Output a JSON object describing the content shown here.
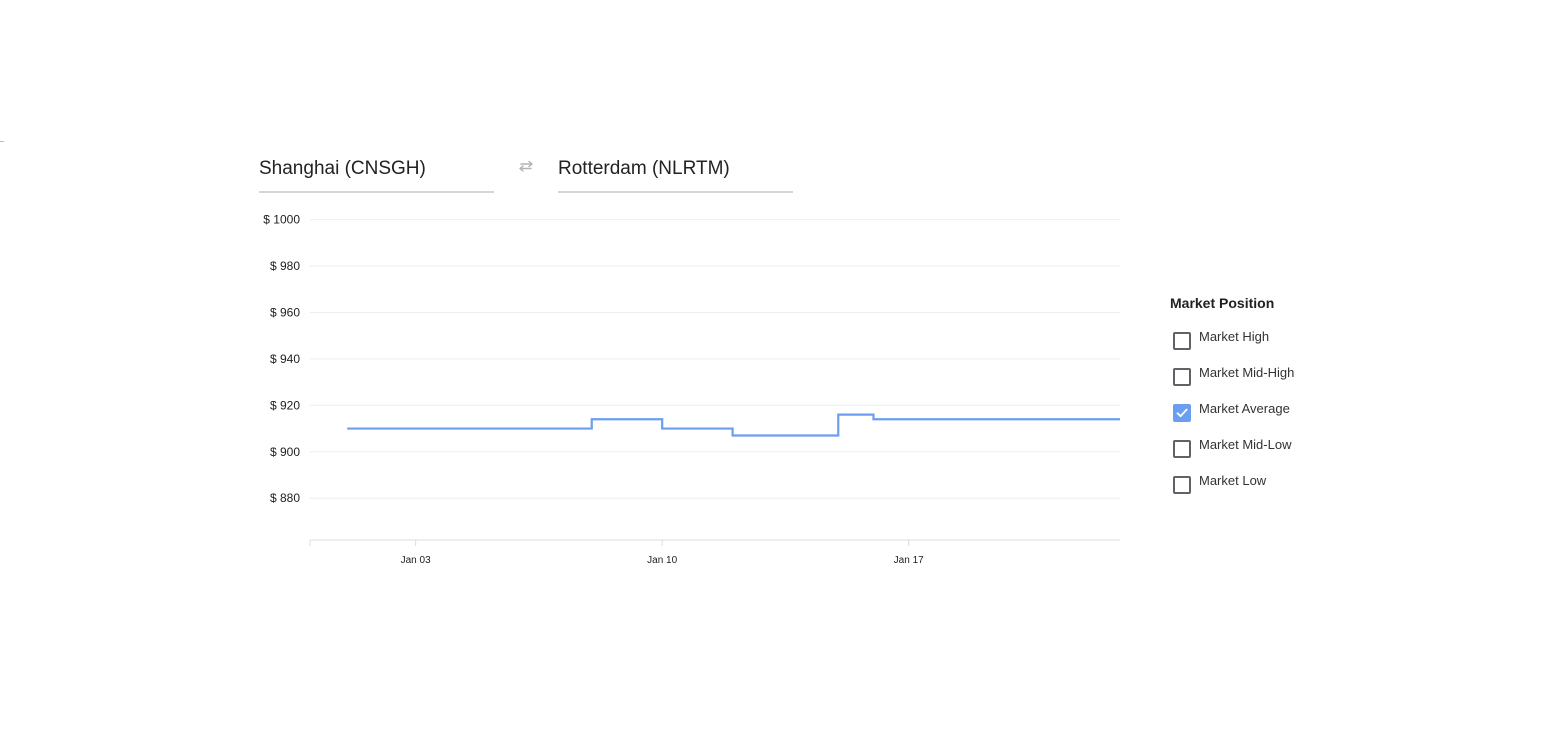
{
  "route": {
    "origin": "Shanghai (CNSGH)",
    "destination": "Rotterdam (NLRTM)",
    "swap_icon": "swap-arrows-icon"
  },
  "legend": {
    "title": "Market Position",
    "items": [
      {
        "label": "Market High",
        "checked": false
      },
      {
        "label": "Market Mid-High",
        "checked": false
      },
      {
        "label": "Market Average",
        "checked": true
      },
      {
        "label": "Market Mid-Low",
        "checked": false
      },
      {
        "label": "Market Low",
        "checked": false
      }
    ]
  },
  "colors": {
    "series_line": "#6b9ef0",
    "checkbox_checked": "#6b9ef0",
    "gridline": "#eeeeee"
  },
  "chart_data": {
    "type": "line",
    "step": true,
    "x_unit": "days",
    "xlim": [
      "2024-12-31",
      "2025-01-23"
    ],
    "ylim": [
      862,
      1002
    ],
    "yticks": [
      {
        "value": 1000,
        "label": "$ 1000"
      },
      {
        "value": 980,
        "label": "$ 980"
      },
      {
        "value": 960,
        "label": "$ 960"
      },
      {
        "value": 940,
        "label": "$ 940"
      },
      {
        "value": 920,
        "label": "$ 920"
      },
      {
        "value": 900,
        "label": "$ 900"
      },
      {
        "value": 880,
        "label": "$ 880"
      }
    ],
    "xticks": [
      {
        "value": "2025-01-03",
        "label": "Jan 03"
      },
      {
        "value": "2025-01-10",
        "label": "Jan 10"
      },
      {
        "value": "2025-01-17",
        "label": "Jan 17"
      }
    ],
    "grid": true,
    "series": [
      {
        "color": "#6b9ef0",
        "points": [
          {
            "x": "2025-01-01",
            "y": 910
          },
          {
            "x": "2025-01-08",
            "y": 914
          },
          {
            "x": "2025-01-10",
            "y": 910
          },
          {
            "x": "2025-01-12",
            "y": 907
          },
          {
            "x": "2025-01-15",
            "y": 916
          },
          {
            "x": "2025-01-16",
            "y": 914
          },
          {
            "x": "2025-01-23",
            "y": 914
          }
        ]
      }
    ]
  }
}
